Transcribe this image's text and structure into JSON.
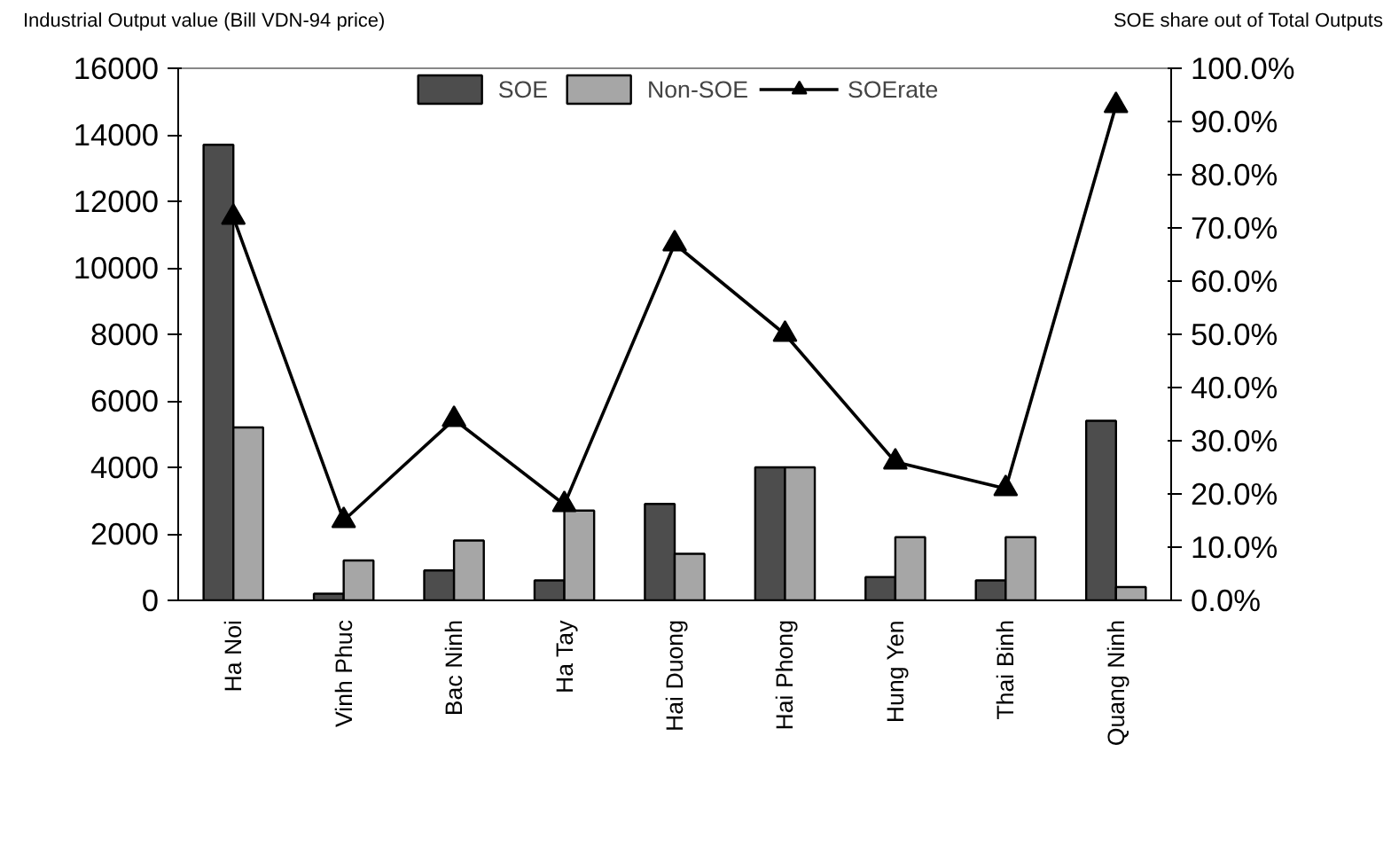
{
  "chart_data": {
    "type": "bar",
    "ylabel": "Industrial Output value (Bill VDN-94 price)",
    "y2label": "SOE share out of  Total Outputs",
    "categories": [
      "Ha Noi",
      "Vinh Phuc",
      "Bac Ninh",
      "Ha Tay",
      "Hai Duong",
      "Hai Phong",
      "Hung Yen",
      "Thai Binh",
      "Quang Ninh"
    ],
    "series": [
      {
        "name": "SOE",
        "color": "#4d4d4d",
        "values": [
          13700,
          200,
          900,
          600,
          2900,
          4000,
          700,
          600,
          5400
        ]
      },
      {
        "name": "Non-SOE",
        "color": "#a6a6a6",
        "values": [
          5200,
          1200,
          1800,
          2700,
          1400,
          4000,
          1900,
          1900,
          400
        ]
      },
      {
        "name": "SOErate",
        "type": "line",
        "axis": "y2",
        "color": "#000000",
        "marker": "triangle",
        "values": [
          72,
          15,
          34,
          18,
          67,
          50,
          26,
          21,
          93
        ]
      }
    ],
    "ylim": [
      0,
      16000
    ],
    "yticks": [
      0,
      2000,
      4000,
      6000,
      8000,
      10000,
      12000,
      14000,
      16000
    ],
    "y2lim": [
      0,
      100
    ],
    "y2ticks": [
      {
        "value": 0,
        "label": "0.0%"
      },
      {
        "value": 10,
        "label": "10.0%"
      },
      {
        "value": 20,
        "label": "20.0%"
      },
      {
        "value": 30,
        "label": "30.0%"
      },
      {
        "value": 40,
        "label": "40.0%"
      },
      {
        "value": 50,
        "label": "50.0%"
      },
      {
        "value": 60,
        "label": "60.0%"
      },
      {
        "value": 70,
        "label": "70.0%"
      },
      {
        "value": 80,
        "label": "80.0%"
      },
      {
        "value": 90,
        "label": "90.0%"
      },
      {
        "value": 100,
        "label": "100.0%"
      }
    ],
    "grid": false,
    "legend": "top"
  }
}
